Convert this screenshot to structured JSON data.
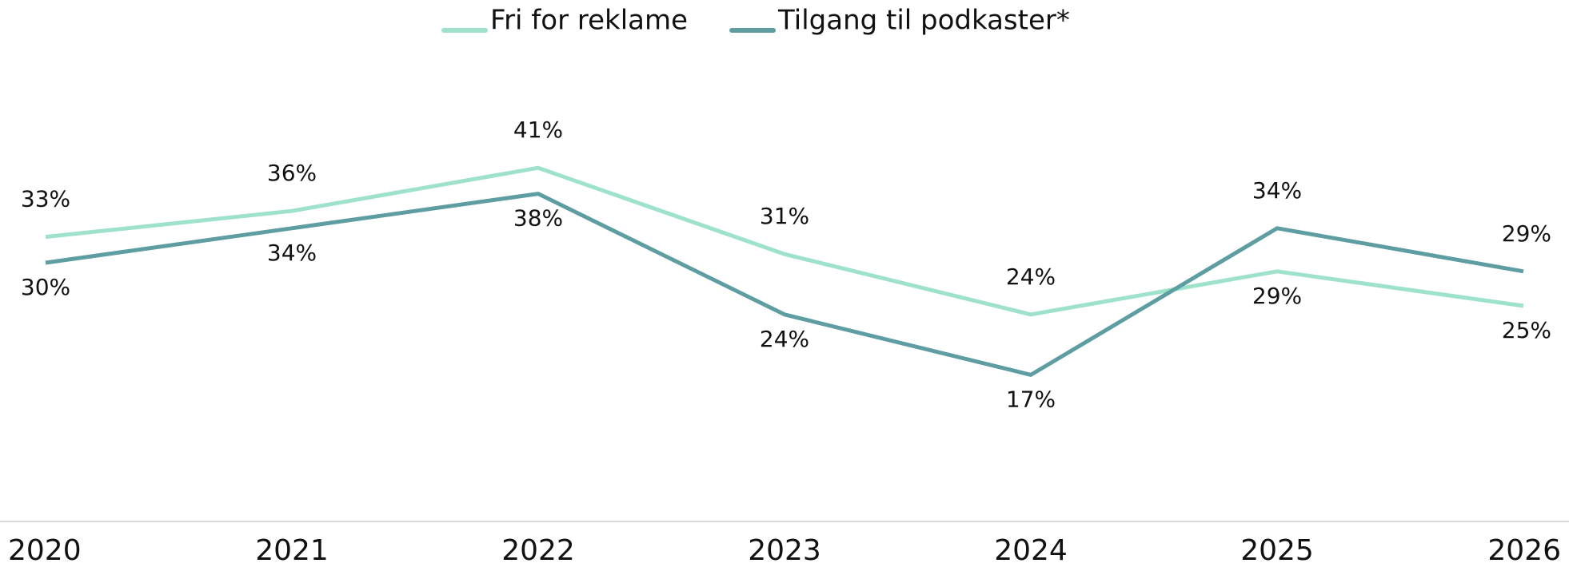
{
  "chart_data": {
    "type": "line",
    "categories": [
      "2020",
      "2021",
      "2022",
      "2023",
      "2024",
      "2025",
      "2026"
    ],
    "series": [
      {
        "name": "Fri for reklame",
        "color": "#9de2c9",
        "values": [
          33,
          36,
          41,
          31,
          24,
          29,
          25
        ],
        "value_labels": [
          "33%",
          "36%",
          "41%",
          "31%",
          "24%",
          "29%",
          "25%"
        ]
      },
      {
        "name": "Tilgang til podkaster*",
        "color": "#5e9ea2",
        "values": [
          30,
          34,
          38,
          24,
          17,
          34,
          29
        ],
        "value_labels": [
          "30%",
          "34%",
          "38%",
          "24%",
          "17%",
          "34%",
          "29%"
        ]
      }
    ],
    "ylim": [
      0,
      50
    ],
    "legend": "top"
  }
}
